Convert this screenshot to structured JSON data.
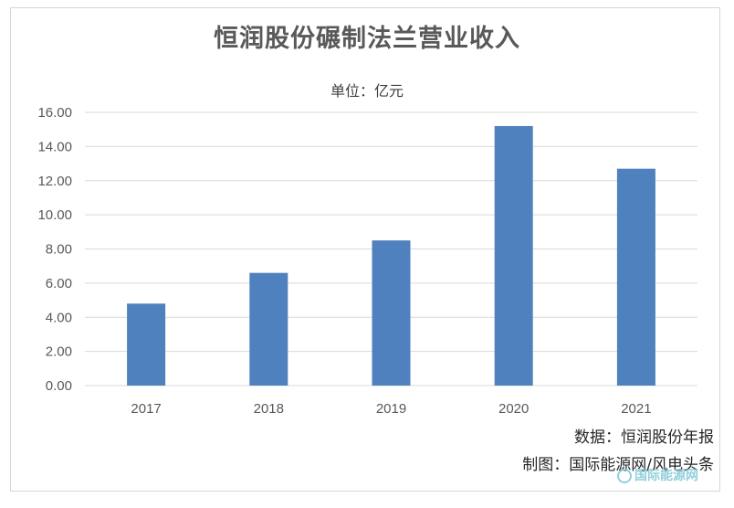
{
  "chart_data": {
    "type": "bar",
    "title": "恒润股份碾制法兰营业收入",
    "subtitle": "单位：亿元",
    "categories": [
      "2017",
      "2018",
      "2019",
      "2020",
      "2021"
    ],
    "values": [
      4.8,
      6.6,
      8.5,
      15.2,
      12.7
    ],
    "y_ticks": [
      "0.00",
      "2.00",
      "4.00",
      "6.00",
      "8.00",
      "10.00",
      "12.00",
      "14.00",
      "16.00"
    ],
    "ylim": [
      0,
      16
    ],
    "grid": true,
    "bar_color": "#4e81bd"
  },
  "source_line": "数据：恒润股份年报",
  "credit_line": "制图：国际能源网/风电头条",
  "watermark": "国际能源网"
}
